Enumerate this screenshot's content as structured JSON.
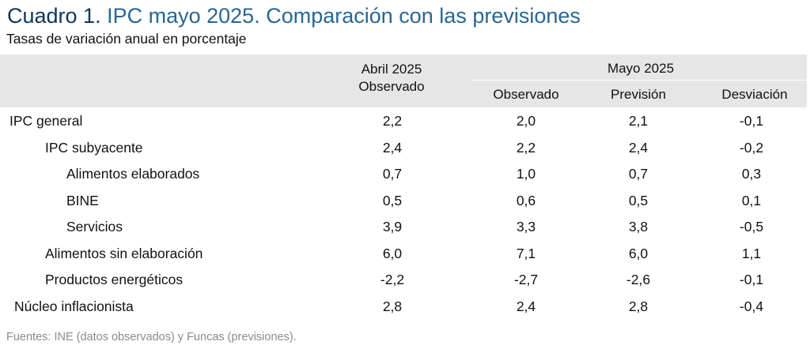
{
  "title": {
    "lead": "Cuadro 1.",
    "rest": "IPC mayo 2025. Comparación con las previsiones"
  },
  "subtitle": "Tasas de variación anual en porcentaje",
  "columns": {
    "april_line1": "Abril 2025",
    "april_line2": "Observado",
    "may_group": "Mayo 2025",
    "may_observed": "Observado",
    "may_forecast": "Previsión",
    "may_deviation": "Desviación"
  },
  "rows": [
    {
      "label": "IPC general",
      "april": "2,2",
      "observed": "2,0",
      "forecast": "2,1",
      "deviation": "-0,1"
    },
    {
      "label": "IPC subyacente",
      "april": "2,4",
      "observed": "2,2",
      "forecast": "2,4",
      "deviation": "-0,2"
    },
    {
      "label": "Alimentos elaborados",
      "april": "0,7",
      "observed": "1,0",
      "forecast": "0,7",
      "deviation": "0,3"
    },
    {
      "label": "BINE",
      "april": "0,5",
      "observed": "0,6",
      "forecast": "0,5",
      "deviation": "0,1"
    },
    {
      "label": "Servicios",
      "april": "3,9",
      "observed": "3,3",
      "forecast": "3,8",
      "deviation": "-0,5"
    },
    {
      "label": "Alimentos sin elaboración",
      "april": "6,0",
      "observed": "7,1",
      "forecast": "6,0",
      "deviation": "1,1"
    },
    {
      "label": "Productos energéticos",
      "april": "-2,2",
      "observed": "-2,7",
      "forecast": "-2,6",
      "deviation": "-0,1"
    },
    {
      "label": "Núcleo inflacionista",
      "april": "2,8",
      "observed": "2,4",
      "forecast": "2,8",
      "deviation": "-0,4"
    }
  ],
  "source": "Fuentes: INE (datos observados) y Funcas (previsiones).",
  "colors": {
    "title_lead": "#0f3558",
    "title_rest": "#2a6691",
    "header_band": "#e6e6e6",
    "source_text": "#8a8a8a"
  }
}
